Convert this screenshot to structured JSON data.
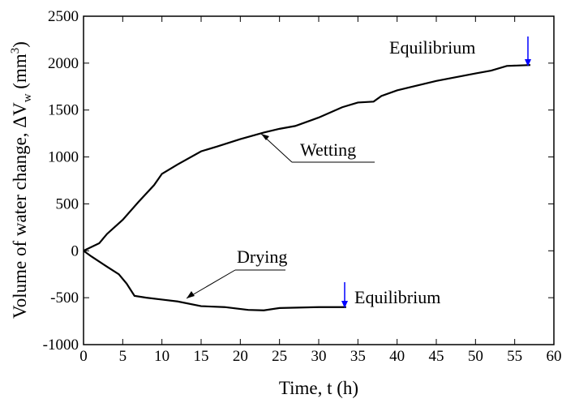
{
  "chart_data": {
    "type": "line",
    "xlabel": "Time, t (h)",
    "ylabel": {
      "text": "Volume of water change, ΔV",
      "sub": "w",
      "unit": " (mm",
      "sup": "3",
      "end": ")"
    },
    "xlim": [
      0,
      60
    ],
    "xticks": [
      0,
      5,
      10,
      15,
      20,
      25,
      30,
      35,
      40,
      45,
      50,
      55,
      60
    ],
    "ylim": [
      -1000,
      2500
    ],
    "yticks": [
      -1000,
      -500,
      0,
      500,
      1000,
      1500,
      2000,
      2500
    ],
    "series": [
      {
        "name": "Wetting",
        "color": "#000000",
        "x": [
          0,
          2,
          3,
          5,
          7,
          9,
          10,
          12,
          15,
          17,
          20,
          23,
          25,
          27,
          30,
          33,
          35,
          37,
          38,
          40,
          45,
          50,
          52,
          54,
          57
        ],
        "values": [
          0,
          80,
          180,
          330,
          520,
          700,
          820,
          920,
          1060,
          1110,
          1190,
          1260,
          1300,
          1330,
          1420,
          1530,
          1580,
          1590,
          1650,
          1710,
          1810,
          1890,
          1920,
          1970,
          1980
        ]
      },
      {
        "name": "Drying",
        "color": "#000000",
        "x": [
          0,
          1,
          3,
          4.5,
          5.5,
          6.5,
          8,
          10,
          12,
          15,
          18,
          21,
          23,
          25,
          30,
          33.5
        ],
        "values": [
          0,
          -60,
          -170,
          -250,
          -350,
          -480,
          -500,
          -520,
          -540,
          -590,
          -600,
          -630,
          -635,
          -610,
          -600,
          -600
        ]
      }
    ],
    "annotations": [
      "Equilibrium",
      "Equilibrium"
    ],
    "arrow_color": "#0000ff"
  }
}
